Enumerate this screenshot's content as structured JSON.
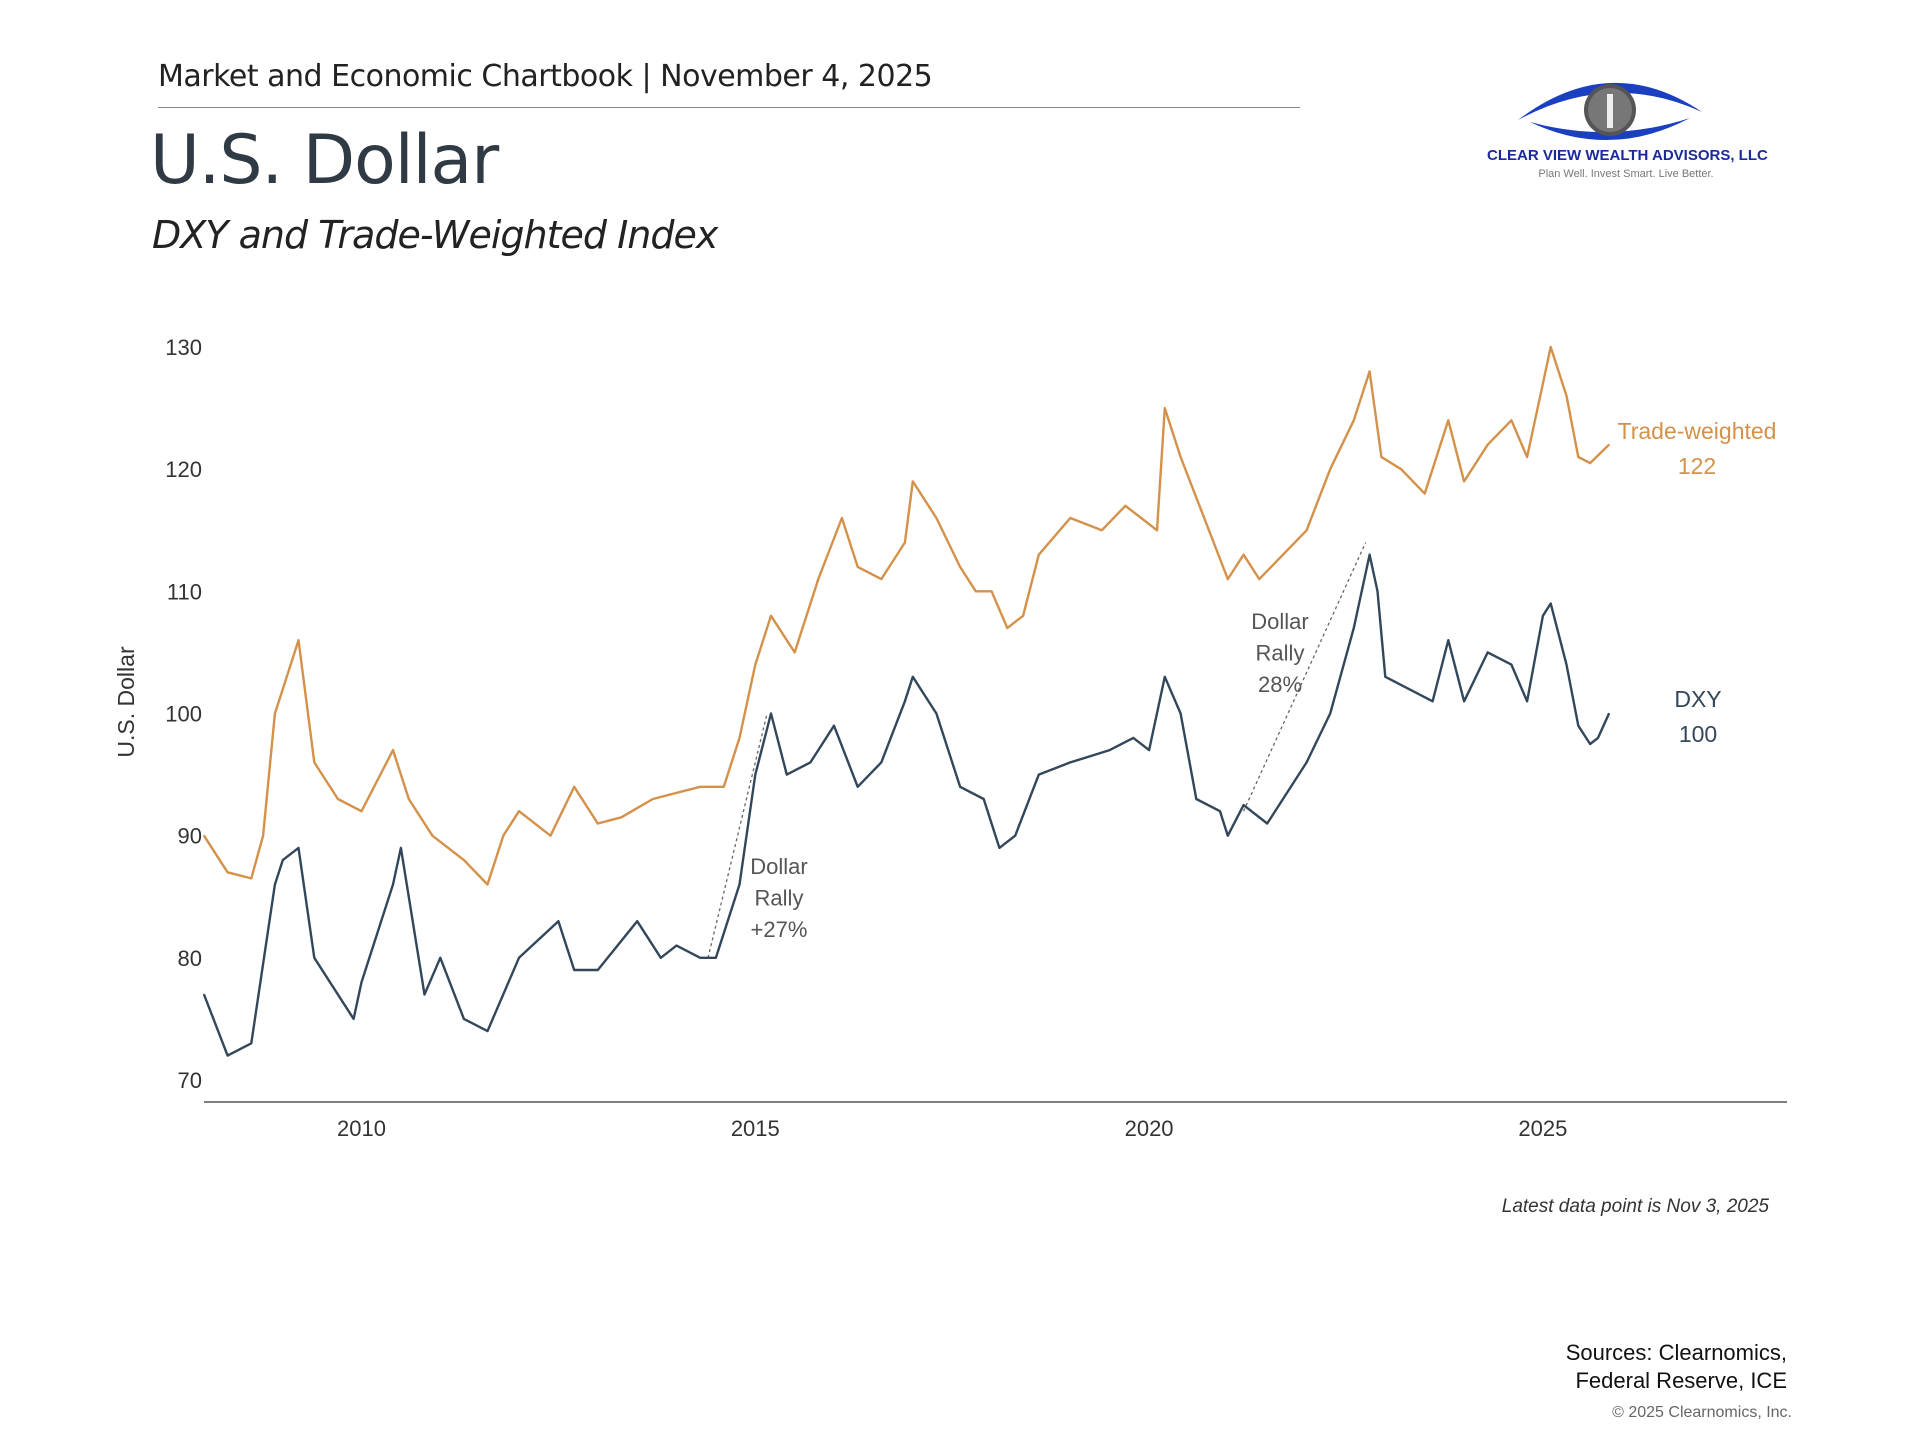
{
  "header": {
    "text": "Market and Economic Chartbook | November 4, 2025"
  },
  "title": "U.S. Dollar",
  "subtitle": "DXY and Trade-Weighted Index",
  "logo": {
    "name": "CLEAR VIEW WEALTH ADVISORS, LLC",
    "tagline": "Plan Well. Invest Smart. Live Better.",
    "color": "#1a2a9c"
  },
  "footer": {
    "note": "Latest data point is Nov 3, 2025",
    "sources_line1": "Sources: Clearnomics,",
    "sources_line2": "Federal Reserve, ICE",
    "copyright": "© 2025 Clearnomics, Inc."
  },
  "chart_data": {
    "type": "line",
    "title": "",
    "xlabel": "",
    "ylabel": "U.S. Dollar",
    "xlim": [
      2008.0,
      2028.1
    ],
    "ylim": [
      70,
      130
    ],
    "yticks": [
      70,
      80,
      90,
      100,
      110,
      120,
      130
    ],
    "xticks": [
      2010,
      2015,
      2020,
      2025
    ],
    "grid": false,
    "legend": "none (direct labels at right)",
    "series": [
      {
        "name": "Trade-weighted",
        "end_label": "122",
        "color": "#D4914A",
        "x": [
          2008.0,
          2008.3,
          2008.6,
          2008.75,
          2008.9,
          2009.0,
          2009.2,
          2009.4,
          2009.7,
          2010.0,
          2010.4,
          2010.6,
          2010.9,
          2011.3,
          2011.6,
          2011.8,
          2012.0,
          2012.4,
          2012.7,
          2013.0,
          2013.3,
          2013.7,
          2014.0,
          2014.3,
          2014.6,
          2014.8,
          2015.0,
          2015.2,
          2015.5,
          2015.8,
          2016.1,
          2016.3,
          2016.6,
          2016.9,
          2017.0,
          2017.3,
          2017.6,
          2017.8,
          2018.0,
          2018.2,
          2018.4,
          2018.6,
          2019.0,
          2019.4,
          2019.7,
          2019.9,
          2020.1,
          2020.2,
          2020.4,
          2020.7,
          2021.0,
          2021.2,
          2021.4,
          2021.7,
          2022.0,
          2022.3,
          2022.6,
          2022.8,
          2022.95,
          2023.2,
          2023.5,
          2023.8,
          2024.0,
          2024.3,
          2024.6,
          2024.8,
          2025.0,
          2025.1,
          2025.3,
          2025.45,
          2025.6,
          2025.84
        ],
        "y": [
          90,
          87,
          86.5,
          90,
          100,
          102,
          106,
          96,
          93,
          92,
          97,
          93,
          90,
          88,
          86,
          90,
          92,
          90,
          94,
          91,
          91.5,
          93,
          93.5,
          94,
          94,
          98,
          104,
          108,
          105,
          111,
          116,
          112,
          111,
          114,
          119,
          116,
          112,
          110,
          110,
          107,
          108,
          113,
          116,
          115,
          117,
          116,
          115,
          125,
          121,
          116,
          111,
          113,
          111,
          113,
          115,
          120,
          124,
          128,
          121,
          120,
          118,
          124,
          119,
          122,
          124,
          121,
          127,
          130,
          126,
          121,
          120.5,
          122
        ]
      },
      {
        "name": "DXY",
        "end_label": "100",
        "color": "#33475B",
        "x": [
          2008.0,
          2008.3,
          2008.6,
          2008.9,
          2009.0,
          2009.2,
          2009.4,
          2009.9,
          2010.0,
          2010.4,
          2010.5,
          2010.8,
          2011.0,
          2011.3,
          2011.6,
          2012.0,
          2012.5,
          2012.7,
          2013.0,
          2013.5,
          2013.8,
          2014.0,
          2014.3,
          2014.5,
          2014.8,
          2015.0,
          2015.2,
          2015.4,
          2015.7,
          2016.0,
          2016.3,
          2016.6,
          2016.9,
          2017.0,
          2017.3,
          2017.6,
          2017.9,
          2018.1,
          2018.3,
          2018.6,
          2019.0,
          2019.5,
          2019.8,
          2020.0,
          2020.2,
          2020.4,
          2020.6,
          2020.9,
          2021.0,
          2021.2,
          2021.5,
          2021.7,
          2022.0,
          2022.3,
          2022.6,
          2022.8,
          2022.9,
          2023.0,
          2023.3,
          2023.6,
          2023.8,
          2024.0,
          2024.3,
          2024.6,
          2024.8,
          2025.0,
          2025.1,
          2025.3,
          2025.45,
          2025.6,
          2025.7,
          2025.84
        ],
        "y": [
          77,
          72,
          73,
          86,
          88,
          89,
          80,
          75,
          78,
          86,
          89,
          77,
          80,
          75,
          74,
          80,
          83,
          79,
          79,
          83,
          80,
          81,
          80,
          80,
          86,
          95,
          100,
          95,
          96,
          99,
          94,
          96,
          101,
          103,
          100,
          94,
          93,
          89,
          90,
          95,
          96,
          97,
          98,
          97,
          103,
          100,
          93,
          92,
          90,
          92.5,
          91,
          93,
          96,
          100,
          107,
          113,
          110,
          103,
          102,
          101,
          106,
          101,
          105,
          104,
          101,
          108,
          109,
          104,
          99,
          97.5,
          98,
          100
        ]
      }
    ],
    "annotations": [
      {
        "lines": [
          "Dollar",
          "Rally",
          "+27%"
        ],
        "from": [
          2014.4,
          80
        ],
        "to": [
          2015.15,
          100
        ]
      },
      {
        "lines": [
          "Dollar",
          "Rally",
          "28%"
        ],
        "from": [
          2021.2,
          92
        ],
        "to": [
          2022.75,
          114
        ]
      }
    ]
  }
}
